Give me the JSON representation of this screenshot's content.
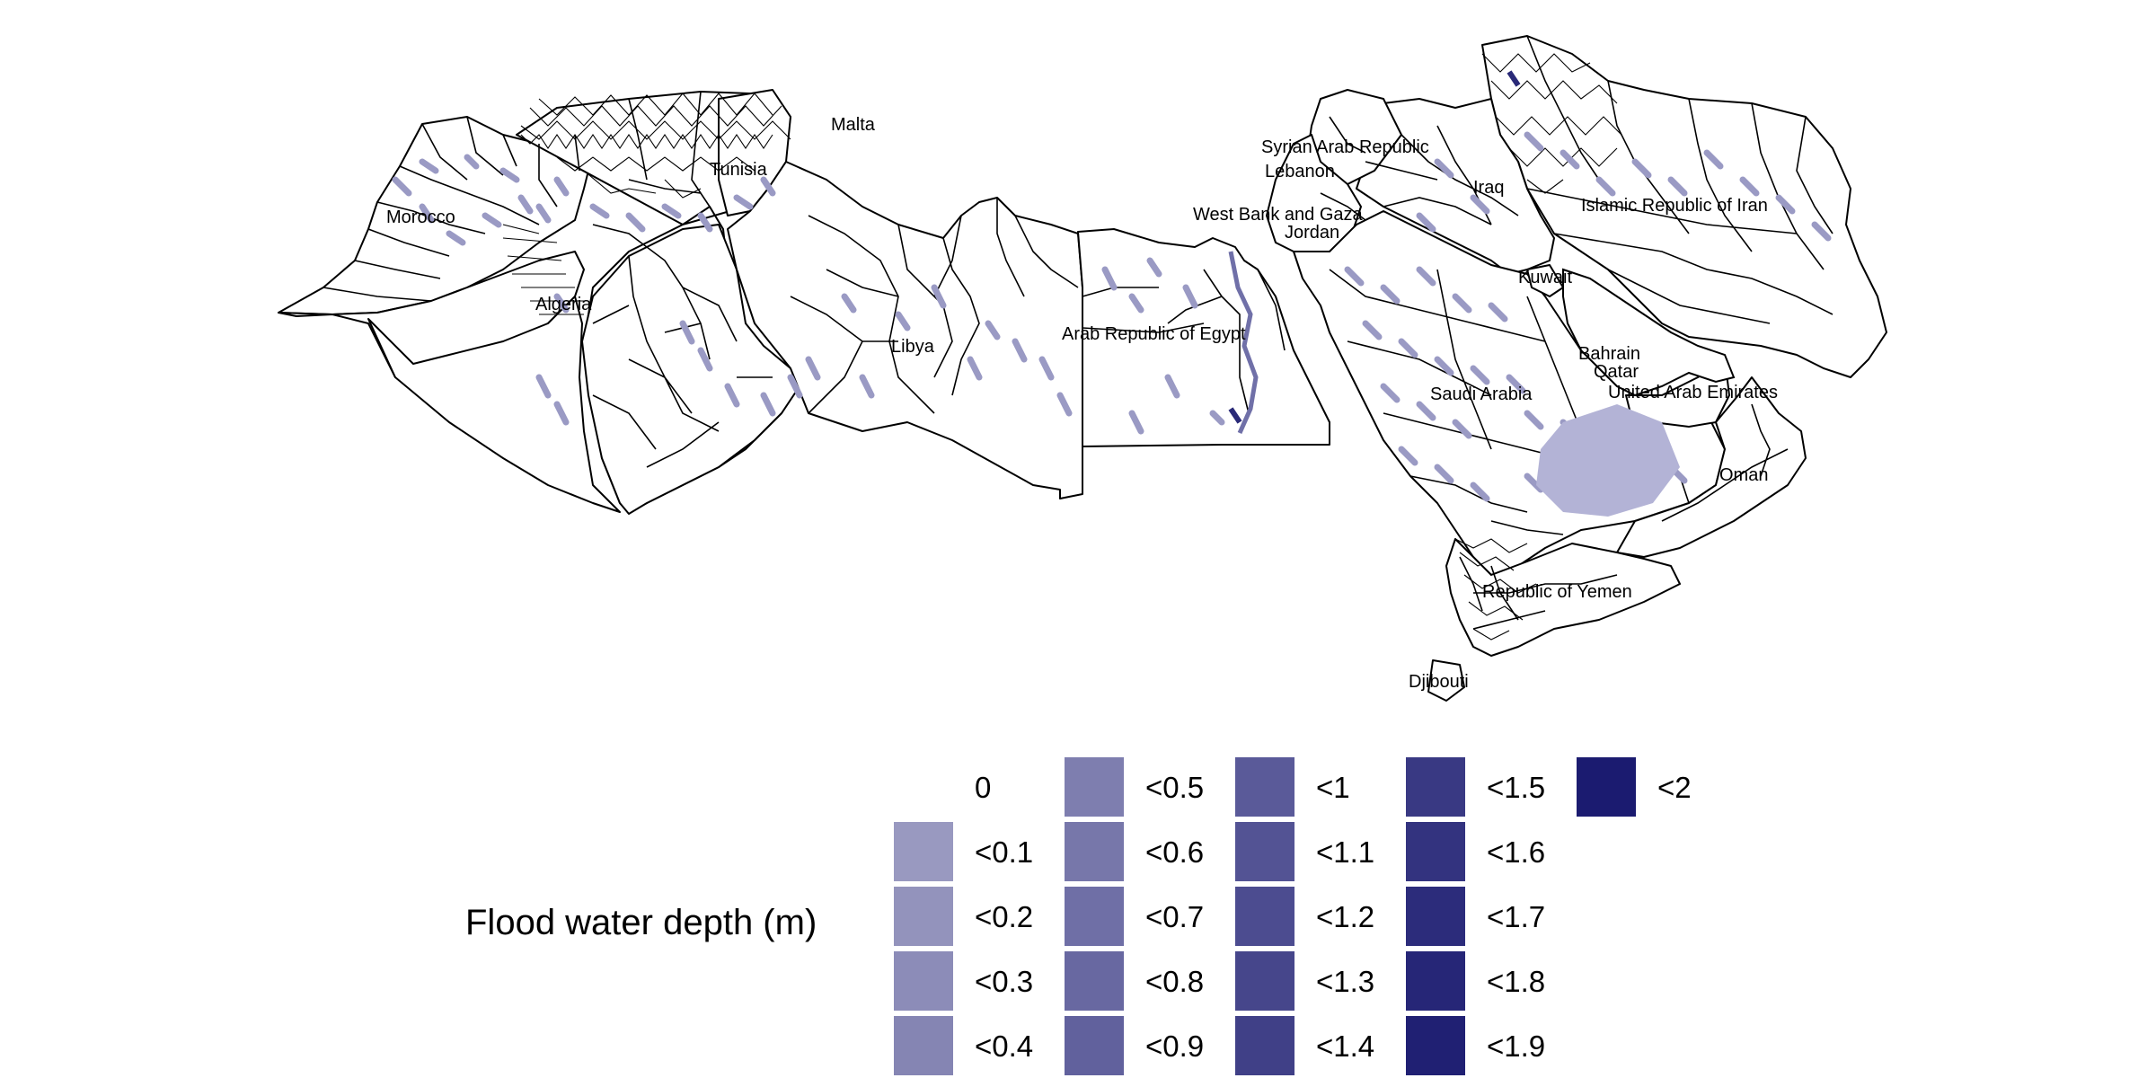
{
  "legend": {
    "title": "Flood water depth (m)",
    "items": [
      {
        "label": "0",
        "color": ""
      },
      {
        "label": "<0.1",
        "color": "#9999c0"
      },
      {
        "label": "<0.2",
        "color": "#9393bc"
      },
      {
        "label": "<0.3",
        "color": "#8c8cb8"
      },
      {
        "label": "<0.4",
        "color": "#8585b3"
      },
      {
        "label": "<0.5",
        "color": "#7e7eaf"
      },
      {
        "label": "<0.6",
        "color": "#7777aa"
      },
      {
        "label": "<0.7",
        "color": "#6f6fa6"
      },
      {
        "label": "<0.8",
        "color": "#6868a1"
      },
      {
        "label": "<0.9",
        "color": "#61619d"
      },
      {
        "label": "<1",
        "color": "#5a5a99"
      },
      {
        "label": "<1.1",
        "color": "#535394"
      },
      {
        "label": "<1.2",
        "color": "#4c4c90"
      },
      {
        "label": "<1.3",
        "color": "#46468b"
      },
      {
        "label": "<1.4",
        "color": "#404087"
      },
      {
        "label": "<1.5",
        "color": "#393983"
      },
      {
        "label": "<1.6",
        "color": "#33337f"
      },
      {
        "label": "<1.7",
        "color": "#2c2c7b"
      },
      {
        "label": "<1.8",
        "color": "#262677"
      },
      {
        "label": "<1.9",
        "color": "#202073"
      },
      {
        "label": "<2",
        "color": "#1b1b70"
      }
    ]
  },
  "countries": [
    {
      "key": "malta",
      "name": "Malta"
    },
    {
      "key": "morocco",
      "name": "Morocco"
    },
    {
      "key": "algeria",
      "name": "Algeria"
    },
    {
      "key": "tunisia",
      "name": "Tunisia"
    },
    {
      "key": "libya",
      "name": "Libya"
    },
    {
      "key": "egypt",
      "name": "Arab Republic of Egypt"
    },
    {
      "key": "west_bank",
      "name": "West Bank and Gaza"
    },
    {
      "key": "syria",
      "name": "Syrian Arab Republic"
    },
    {
      "key": "lebanon",
      "name": "Lebanon"
    },
    {
      "key": "jordan",
      "name": "Jordan"
    },
    {
      "key": "iraq",
      "name": "Iraq"
    },
    {
      "key": "iran",
      "name": "Islamic Republic of Iran"
    },
    {
      "key": "kuwait",
      "name": "Kuwait"
    },
    {
      "key": "saudi",
      "name": "Saudi Arabia"
    },
    {
      "key": "bahrain",
      "name": "Bahrain"
    },
    {
      "key": "qatar",
      "name": "Qatar"
    },
    {
      "key": "uae",
      "name": "United Arab Emirates"
    },
    {
      "key": "oman",
      "name": "Oman"
    },
    {
      "key": "yemen",
      "name": "Republic of Yemen"
    },
    {
      "key": "djibouti",
      "name": "Djibouti"
    }
  ],
  "colors": {
    "background": "#ffffff",
    "boundary": "#000000",
    "flood_light": "#9a9ac4",
    "flood_deep": "#1b1b70"
  }
}
